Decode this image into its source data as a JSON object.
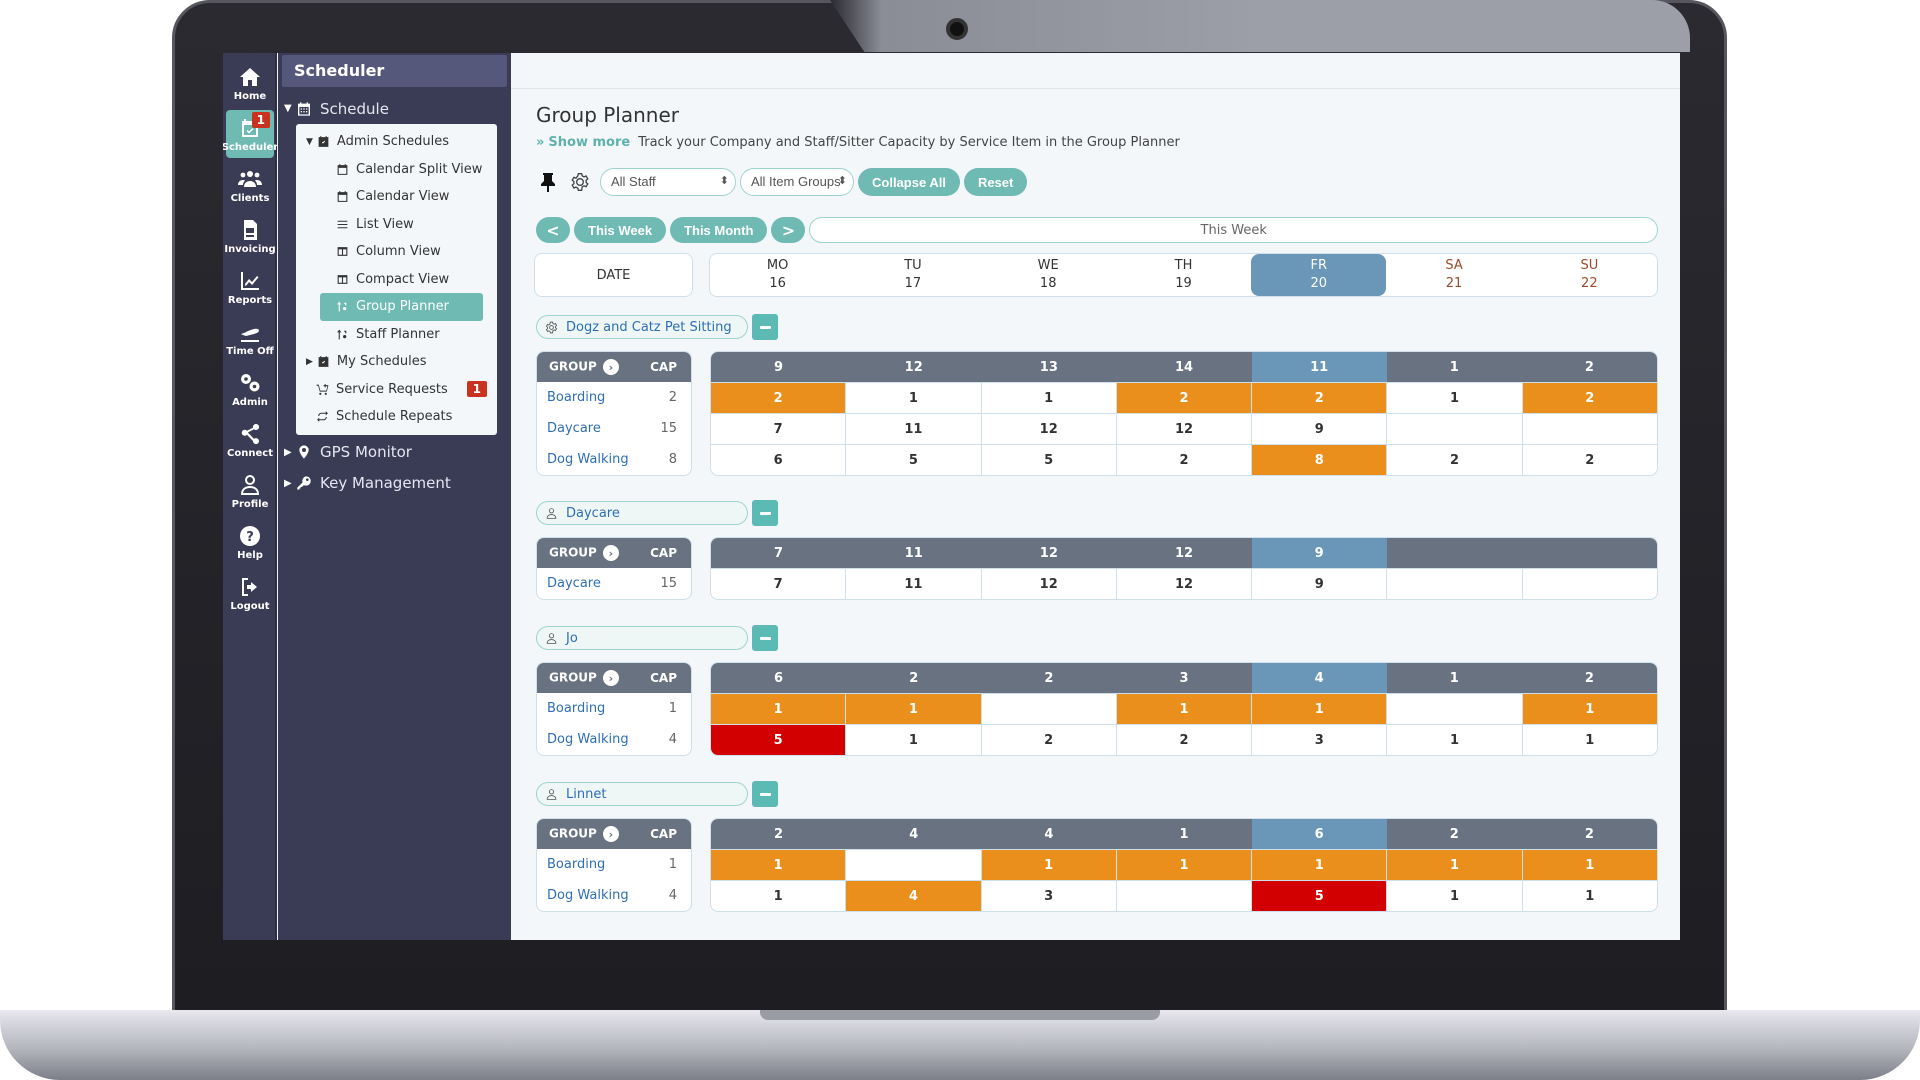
{
  "rail": [
    {
      "label": "Home",
      "icon": "home-icon"
    },
    {
      "label": "Scheduler",
      "icon": "calendar-check-icon",
      "badge": "1",
      "active": true
    },
    {
      "label": "Clients",
      "icon": "users-icon"
    },
    {
      "label": "Invoicing",
      "icon": "invoice-icon"
    },
    {
      "label": "Reports",
      "icon": "chart-line-icon"
    },
    {
      "label": "Time Off",
      "icon": "plane-icon"
    },
    {
      "label": "Admin",
      "icon": "gears-icon"
    },
    {
      "label": "Connect",
      "icon": "share-nodes-icon"
    },
    {
      "label": "Profile",
      "icon": "user-icon"
    },
    {
      "label": "Help",
      "icon": "question-circle-icon"
    },
    {
      "label": "Logout",
      "icon": "logout-icon"
    }
  ],
  "sidebar": {
    "title": "Scheduler",
    "schedule": "Schedule",
    "admin_schedules": "Admin Schedules",
    "items": [
      "Calendar Split View",
      "Calendar View",
      "List View",
      "Column View",
      "Compact View",
      "Group Planner",
      "Staff Planner"
    ],
    "my_schedules": "My Schedules",
    "service_requests": "Service Requests",
    "service_requests_badge": "1",
    "schedule_repeats": "Schedule Repeats",
    "gps_monitor": "GPS Monitor",
    "key_management": "Key Management"
  },
  "page": {
    "title": "Group Planner",
    "show_more": "Show more",
    "description": "Track your Company and Staff/Sitter Capacity by Service Item in the Group Planner"
  },
  "toolbar": {
    "staff_select": "All Staff",
    "item_groups_select": "All Item Groups",
    "collapse_all": "Collapse All",
    "reset": "Reset"
  },
  "nav": {
    "prev": "<",
    "this_week": "This Week",
    "this_month": "This Month",
    "next": ">",
    "range": "This Week"
  },
  "date_header": {
    "label": "DATE",
    "days": [
      {
        "dow": "MO",
        "date": "16"
      },
      {
        "dow": "TU",
        "date": "17"
      },
      {
        "dow": "WE",
        "date": "18"
      },
      {
        "dow": "TH",
        "date": "19"
      },
      {
        "dow": "FR",
        "date": "20",
        "today": true
      },
      {
        "dow": "SA",
        "date": "21",
        "weekend": true
      },
      {
        "dow": "SU",
        "date": "22",
        "weekend": true
      }
    ]
  },
  "grid_labels": {
    "group": "GROUP",
    "cap": "CAP"
  },
  "colors": {
    "accent": "#6fbab3",
    "today": "#6a97b8",
    "over": "#ea8e1c",
    "critical": "#d20000",
    "header": "#687280"
  },
  "sections": [
    {
      "name": "Dogz and Catz Pet Sitting",
      "icon": "gear-icon",
      "totals": [
        "9",
        "12",
        "13",
        "14",
        "11",
        "1",
        "2"
      ],
      "rows": [
        {
          "name": "Boarding",
          "cap": "2",
          "values": [
            "2",
            "1",
            "1",
            "2",
            "2",
            "1",
            "2"
          ],
          "status": [
            "o",
            "",
            "",
            "o",
            "o",
            "",
            "o"
          ]
        },
        {
          "name": "Daycare",
          "cap": "15",
          "values": [
            "7",
            "11",
            "12",
            "12",
            "9",
            "",
            ""
          ],
          "status": [
            "",
            "",
            "",
            "",
            "",
            "",
            ""
          ]
        },
        {
          "name": "Dog Walking",
          "cap": "8",
          "values": [
            "6",
            "5",
            "5",
            "2",
            "8",
            "2",
            "2"
          ],
          "status": [
            "",
            "",
            "",
            "",
            "o",
            "",
            ""
          ]
        }
      ]
    },
    {
      "name": "Daycare",
      "icon": "user-icon",
      "totals": [
        "7",
        "11",
        "12",
        "12",
        "9",
        "",
        ""
      ],
      "rows": [
        {
          "name": "Daycare",
          "cap": "15",
          "values": [
            "7",
            "11",
            "12",
            "12",
            "9",
            "",
            ""
          ],
          "status": [
            "",
            "",
            "",
            "",
            "",
            "",
            ""
          ]
        }
      ]
    },
    {
      "name": "Jo",
      "icon": "user-icon",
      "totals": [
        "6",
        "2",
        "2",
        "3",
        "4",
        "1",
        "2"
      ],
      "rows": [
        {
          "name": "Boarding",
          "cap": "1",
          "values": [
            "1",
            "1",
            "",
            "1",
            "1",
            "",
            "1"
          ],
          "status": [
            "o",
            "o",
            "",
            "o",
            "o",
            "",
            "o"
          ]
        },
        {
          "name": "Dog Walking",
          "cap": "4",
          "values": [
            "5",
            "1",
            "2",
            "2",
            "3",
            "1",
            "1"
          ],
          "status": [
            "r",
            "",
            "",
            "",
            "",
            "",
            ""
          ]
        }
      ]
    },
    {
      "name": "Linnet",
      "icon": "user-icon",
      "totals": [
        "2",
        "4",
        "4",
        "1",
        "6",
        "2",
        "2"
      ],
      "rows": [
        {
          "name": "Boarding",
          "cap": "1",
          "values": [
            "1",
            "",
            "1",
            "1",
            "1",
            "1",
            "1"
          ],
          "status": [
            "o",
            "",
            "o",
            "o",
            "o",
            "o",
            "o"
          ]
        },
        {
          "name": "Dog Walking",
          "cap": "4",
          "values": [
            "1",
            "4",
            "3",
            "",
            "5",
            "1",
            "1"
          ],
          "status": [
            "",
            "o",
            "",
            "",
            "r",
            "",
            ""
          ]
        }
      ]
    }
  ]
}
